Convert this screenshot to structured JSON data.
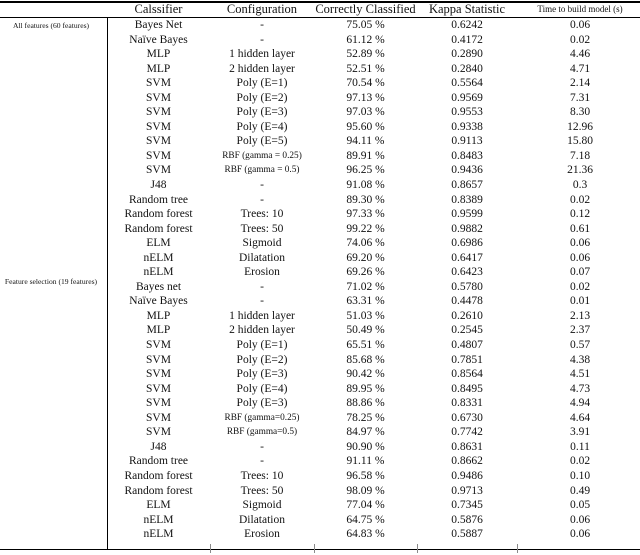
{
  "table": {
    "columns": [
      "Calssifier",
      "Configuration",
      "Correctly Classified",
      "Kappa Statistic",
      "Time to build model (s)"
    ],
    "groups": [
      {
        "label": "All features (60 features)",
        "rows": [
          {
            "classifier": "Bayes Net",
            "configuration": "-",
            "correct": "75.05 %",
            "kappa": "0.6242",
            "time": "0.06"
          },
          {
            "classifier": "Naïve Bayes",
            "configuration": "-",
            "correct": "61.12 %",
            "kappa": "0.4172",
            "time": "0.02"
          },
          {
            "classifier": "MLP",
            "configuration": "1 hidden layer",
            "correct": "52.89 %",
            "kappa": "0.2890",
            "time": "4.46"
          },
          {
            "classifier": "MLP",
            "configuration": "2 hidden layer",
            "correct": "52.51 %",
            "kappa": "0.2840",
            "time": "4.71"
          },
          {
            "classifier": "SVM",
            "configuration": "Poly (E=1)",
            "correct": "70.54 %",
            "kappa": "0.5564",
            "time": "2.14"
          },
          {
            "classifier": "SVM",
            "configuration": "Poly (E=2)",
            "correct": "97.13 %",
            "kappa": "0.9569",
            "time": "7.31"
          },
          {
            "classifier": "SVM",
            "configuration": "Poly (E=3)",
            "correct": "97.03 %",
            "kappa": "0.9553",
            "time": "8.30"
          },
          {
            "classifier": "SVM",
            "configuration": "Poly (E=4)",
            "correct": "95.60 %",
            "kappa": "0.9338",
            "time": "12.96"
          },
          {
            "classifier": "SVM",
            "configuration": "Poly (E=5)",
            "correct": "94.11 %",
            "kappa": "0.9113",
            "time": "15.80"
          },
          {
            "classifier": "SVM",
            "configuration": "RBF (gamma = 0.25)",
            "cfg_small": true,
            "correct": "89.91 %",
            "kappa": "0.8483",
            "time": "7.18"
          },
          {
            "classifier": "SVM",
            "configuration": "RBF (gamma = 0.5)",
            "cfg_small": true,
            "correct": "96.25 %",
            "kappa": "0.9436",
            "time": "21.36"
          },
          {
            "classifier": "J48",
            "configuration": "-",
            "correct": "91.08 %",
            "kappa": "0.8657",
            "time": "0.3"
          },
          {
            "classifier": "Random tree",
            "configuration": "-",
            "correct": "89.30 %",
            "kappa": "0.8389",
            "time": "0.02"
          },
          {
            "classifier": "Random forest",
            "configuration": "Trees: 10",
            "correct": "97.33 %",
            "kappa": "0.9599",
            "time": "0.12"
          },
          {
            "classifier": "Random forest",
            "configuration": "Trees: 50",
            "correct": "99.22 %",
            "kappa": "0.9882",
            "time": "0.61"
          },
          {
            "classifier": "ELM",
            "configuration": "Sigmoid",
            "correct": "74.06 %",
            "kappa": "0.6986",
            "time": "0.06"
          },
          {
            "classifier": "nELM",
            "configuration": "Dilatation",
            "correct": "69.20 %",
            "kappa": "0.6417",
            "time": "0.06"
          },
          {
            "classifier": "nELM",
            "configuration": "Erosion",
            "correct": "69.26 %",
            "kappa": "0.6423",
            "time": "0.07"
          }
        ]
      },
      {
        "label": "Feature selection (19 features)",
        "rows": [
          {
            "classifier": "Bayes net",
            "configuration": "-",
            "correct": "71.02 %",
            "kappa": "0.5780",
            "time": "0.02"
          },
          {
            "classifier": "Naïve Bayes",
            "configuration": "-",
            "correct": "63.31 %",
            "kappa": "0.4478",
            "time": "0.01"
          },
          {
            "classifier": "MLP",
            "configuration": "1 hidden layer",
            "correct": "51.03 %",
            "kappa": "0.2610",
            "time": "2.13"
          },
          {
            "classifier": "MLP",
            "configuration": "2 hidden layer",
            "correct": "50.49 %",
            "kappa": "0.2545",
            "time": "2.37"
          },
          {
            "classifier": "SVM",
            "configuration": "Poly (E=1)",
            "correct": "65.51 %",
            "kappa": "0.4807",
            "time": "0.57"
          },
          {
            "classifier": "SVM",
            "configuration": "Poly (E=2)",
            "correct": "85.68 %",
            "kappa": "0.7851",
            "time": "4.38"
          },
          {
            "classifier": "SVM",
            "configuration": "Poly (E=3)",
            "correct": "90.42 %",
            "kappa": "0.8564",
            "time": "4.51"
          },
          {
            "classifier": "SVM",
            "configuration": "Poly (E=4)",
            "correct": "89.95 %",
            "kappa": "0.8495",
            "time": "4.73"
          },
          {
            "classifier": "SVM",
            "configuration": "Poly (E=3)",
            "correct": "88.86 %",
            "kappa": "0.8331",
            "time": "4.94"
          },
          {
            "classifier": "SVM",
            "configuration": "RBF (gamma=0.25)",
            "cfg_small": true,
            "correct": "78.25 %",
            "kappa": "0.6730",
            "time": "4.64"
          },
          {
            "classifier": "SVM",
            "configuration": "RBF (gamma=0.5)",
            "cfg_small": true,
            "correct": "84.97 %",
            "kappa": "0.7742",
            "time": "3.91"
          },
          {
            "classifier": "J48",
            "configuration": "-",
            "correct": "90.90 %",
            "kappa": "0.8631",
            "time": "0.11"
          },
          {
            "classifier": "Random tree",
            "configuration": "-",
            "correct": "91.11 %",
            "kappa": "0.8662",
            "time": "0.02"
          },
          {
            "classifier": "Random forest",
            "configuration": "Trees: 10",
            "correct": "96.58 %",
            "kappa": "0.9486",
            "time": "0.10"
          },
          {
            "classifier": "Random forest",
            "configuration": "Trees: 50",
            "correct": "98.09 %",
            "kappa": "0.9713",
            "time": "0.49"
          },
          {
            "classifier": "ELM",
            "configuration": "Sigmoid",
            "correct": "77.04 %",
            "kappa": "0.7345",
            "time": "0.05"
          },
          {
            "classifier": "nELM",
            "configuration": "Dilatation",
            "correct": "64.75 %",
            "kappa": "0.5876",
            "time": "0.06"
          },
          {
            "classifier": "nELM",
            "configuration": "Erosion",
            "correct": "64.83 %",
            "kappa": "0.5887",
            "time": "0.06"
          }
        ]
      }
    ]
  }
}
